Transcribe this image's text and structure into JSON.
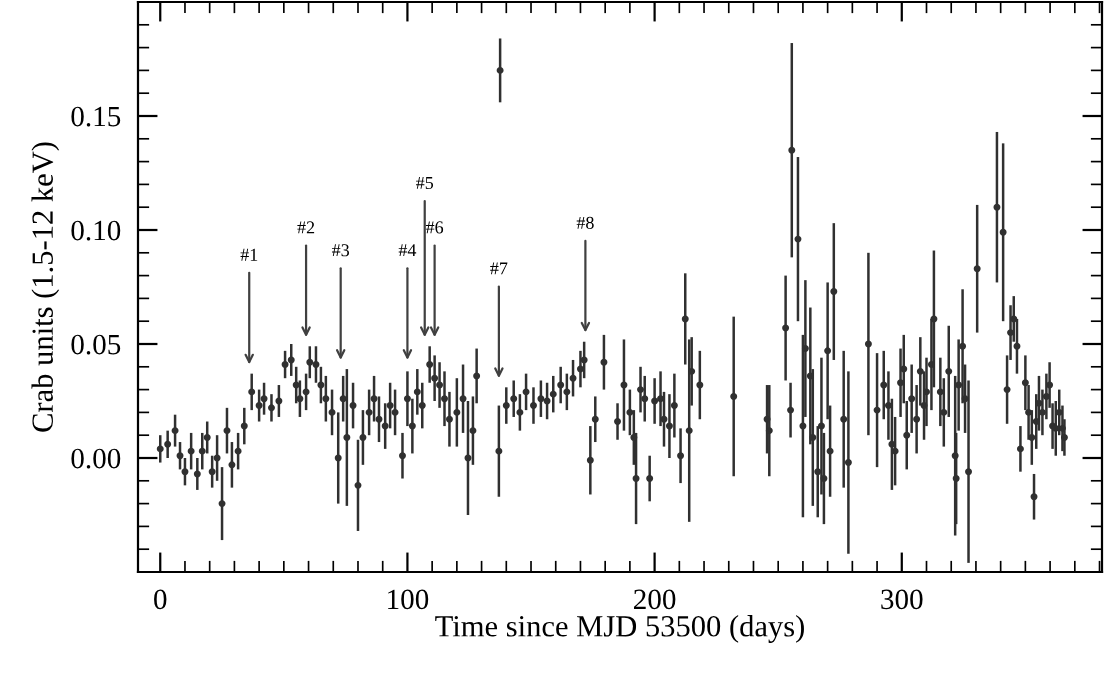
{
  "chart_data": {
    "type": "scatter",
    "xlabel": "Time since MJD 53500 (days)",
    "ylabel": "Crab units (1.5-12 keV)",
    "xlim": [
      -9,
      381
    ],
    "ylim": [
      -0.05,
      0.2
    ],
    "xticks": [
      0,
      100,
      200,
      300
    ],
    "yticks": [
      {
        "value": 0,
        "label": "0.00"
      },
      {
        "value": 0.05,
        "label": "0.05"
      },
      {
        "value": 0.1,
        "label": "0.10"
      },
      {
        "value": 0.15,
        "label": "0.15"
      }
    ],
    "grid": false,
    "legend": false,
    "marker": "circle",
    "annotations": [
      {
        "text": "#1",
        "x": 36
      },
      {
        "text": "#2",
        "x": 59
      },
      {
        "text": "#3",
        "x": 73
      },
      {
        "text": "#4",
        "x": 100
      },
      {
        "text": "#5",
        "x": 107
      },
      {
        "text": "#6",
        "x": 111
      },
      {
        "text": "#7",
        "x": 137
      },
      {
        "text": "#8",
        "x": 172
      }
    ],
    "series": [
      {
        "color": "#303030",
        "x": [
          0,
          3,
          6,
          8,
          10,
          12.5,
          15,
          17,
          19,
          21,
          23,
          25,
          27,
          29,
          31.5,
          34,
          37,
          40,
          42,
          45,
          48,
          50.5,
          53,
          55,
          56.5,
          59,
          60.5,
          63,
          65,
          67,
          69.5,
          72,
          74,
          75.5,
          78,
          80,
          82,
          84.5,
          86.5,
          88.5,
          91,
          93,
          95,
          98,
          100,
          102,
          104,
          106,
          109,
          111,
          113,
          115,
          117,
          120,
          122.5,
          124.5,
          126.5,
          128,
          137,
          137.5,
          140,
          143,
          145.5,
          148,
          151,
          154,
          156.5,
          159,
          162,
          164.5,
          167,
          170,
          171.5,
          174,
          176,
          179.5,
          185,
          187.6,
          190,
          191.6,
          192.5,
          194.3,
          196,
          198,
          200,
          202.4,
          203.8,
          206,
          208,
          210.5,
          212.4,
          214,
          215,
          218.3,
          232,
          245.5,
          246.4,
          253,
          255,
          255.5,
          258,
          260,
          261,
          263,
          264,
          266,
          267.5,
          268.5,
          270,
          271,
          272.5,
          276.5,
          278.4,
          286.5,
          290,
          292.7,
          294.6,
          296,
          297.3,
          299.5,
          300.8,
          302,
          304,
          306,
          307.5,
          309,
          310,
          312,
          313,
          315.6,
          317,
          319,
          321.6,
          322,
          323,
          324.6,
          325.6,
          327,
          330.5,
          338.5,
          341,
          342.6,
          344,
          345.3,
          346.6,
          348,
          350,
          351.3,
          352.6,
          353.5,
          354.4,
          355.5,
          356.9,
          358.5,
          359.8,
          361,
          362.3,
          363.7,
          365,
          365.8
        ],
        "values": [
          0.004,
          0.006,
          0.012,
          0.001,
          -0.006,
          0.003,
          -0.007,
          0.003,
          0.009,
          -0.006,
          0.0,
          -0.02,
          0.012,
          -0.003,
          0.003,
          0.014,
          0.029,
          0.023,
          0.026,
          0.022,
          0.025,
          0.041,
          0.043,
          0.032,
          0.026,
          0.029,
          0.042,
          0.041,
          0.032,
          0.026,
          0.02,
          0.0,
          0.026,
          0.009,
          0.023,
          -0.012,
          0.009,
          0.02,
          0.026,
          0.017,
          0.014,
          0.023,
          0.02,
          0.001,
          0.026,
          0.014,
          0.029,
          0.023,
          0.041,
          0.035,
          0.032,
          0.026,
          0.017,
          0.02,
          0.026,
          0.0,
          0.012,
          0.036,
          0.003,
          0.17,
          0.023,
          0.026,
          0.02,
          0.029,
          0.023,
          0.026,
          0.025,
          0.028,
          0.032,
          0.029,
          0.035,
          0.039,
          0.043,
          -0.001,
          0.017,
          0.042,
          0.016,
          0.032,
          0.02,
          0.009,
          -0.009,
          0.03,
          0.026,
          -0.009,
          0.025,
          0.026,
          0.017,
          0.014,
          0.023,
          0.001,
          0.061,
          0.012,
          0.038,
          0.032,
          0.027,
          0.017,
          0.012,
          0.057,
          0.021,
          0.135,
          0.096,
          0.014,
          0.048,
          0.036,
          0.009,
          -0.006,
          0.014,
          -0.009,
          0.047,
          0.003,
          0.073,
          0.017,
          -0.002,
          0.05,
          0.021,
          0.032,
          0.023,
          0.006,
          0.003,
          0.033,
          0.039,
          0.01,
          0.026,
          0.017,
          0.038,
          0.023,
          0.029,
          0.041,
          0.061,
          0.029,
          0.02,
          0.038,
          0.001,
          -0.009,
          0.032,
          0.049,
          0.026,
          -0.006,
          0.083,
          0.11,
          0.099,
          0.03,
          0.055,
          0.061,
          0.049,
          0.004,
          0.033,
          0.02,
          0.009,
          -0.017,
          0.016,
          0.024,
          0.02,
          0.027,
          0.032,
          0.014,
          0.013,
          0.02,
          0.013,
          0.009
        ],
        "errors": [
          0.006,
          0.006,
          0.007,
          0.006,
          0.006,
          0.008,
          0.007,
          0.008,
          0.007,
          0.007,
          0.01,
          0.016,
          0.01,
          0.01,
          0.008,
          0.008,
          0.008,
          0.007,
          0.007,
          0.006,
          0.007,
          0.006,
          0.007,
          0.008,
          0.008,
          0.008,
          0.007,
          0.008,
          0.008,
          0.01,
          0.01,
          0.02,
          0.01,
          0.03,
          0.01,
          0.02,
          0.012,
          0.01,
          0.01,
          0.01,
          0.01,
          0.01,
          0.01,
          0.01,
          0.012,
          0.012,
          0.01,
          0.01,
          0.008,
          0.01,
          0.01,
          0.012,
          0.012,
          0.015,
          0.015,
          0.025,
          0.015,
          0.012,
          0.02,
          0.014,
          0.008,
          0.008,
          0.008,
          0.008,
          0.008,
          0.008,
          0.008,
          0.008,
          0.008,
          0.008,
          0.008,
          0.008,
          0.008,
          0.015,
          0.01,
          0.012,
          0.008,
          0.02,
          0.01,
          0.012,
          0.02,
          0.01,
          0.01,
          0.01,
          0.01,
          0.012,
          0.012,
          0.014,
          0.014,
          0.012,
          0.02,
          0.04,
          0.015,
          0.015,
          0.035,
          0.015,
          0.02,
          0.023,
          0.012,
          0.047,
          0.036,
          0.04,
          0.03,
          0.03,
          0.03,
          0.02,
          0.03,
          0.02,
          0.03,
          0.02,
          0.03,
          0.03,
          0.04,
          0.04,
          0.025,
          0.015,
          0.015,
          0.02,
          0.015,
          0.015,
          0.015,
          0.015,
          0.015,
          0.015,
          0.015,
          0.015,
          0.015,
          0.02,
          0.03,
          0.015,
          0.015,
          0.02,
          0.035,
          0.02,
          0.02,
          0.025,
          0.015,
          0.04,
          0.028,
          0.033,
          0.039,
          0.015,
          0.012,
          0.01,
          0.012,
          0.01,
          0.012,
          0.012,
          0.012,
          0.01,
          0.012,
          0.012,
          0.01,
          0.01,
          0.01,
          0.01,
          0.012,
          0.01,
          0.01,
          0.008
        ]
      }
    ]
  }
}
